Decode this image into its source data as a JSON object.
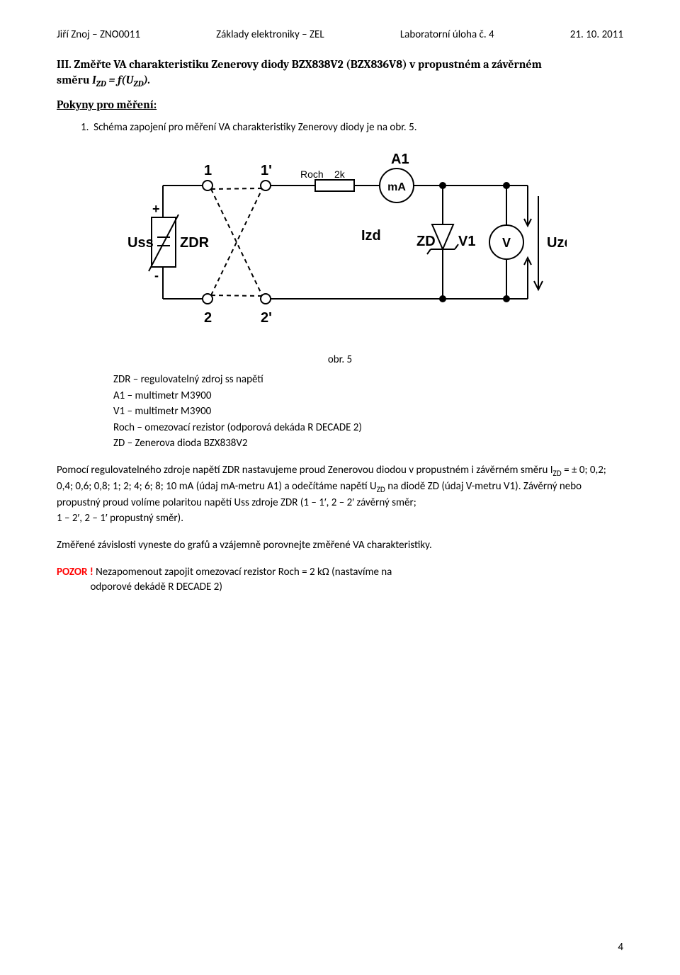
{
  "header": {
    "author": "Jiří Znoj – ZNO0011",
    "subject": "Základy elektroniky – ZEL",
    "task": "Laboratorní úloha č. 4",
    "date": "21. 10. 2011"
  },
  "section": {
    "title_prefix": "III. Změřte VA charakteristiku Zenerovy diody BZX838V2 (BZX836V8) v propustném a závěrném",
    "title_line2_prefix": "směru ",
    "formula_html": "I<sub>ZD</sub> = f(U<sub>ZD</sub>)."
  },
  "instructions_heading": "Pokyny pro měření:",
  "step1": "Schéma zapojení pro měření VA charakteristiky Zenerovy diody je na obr. 5.",
  "circuit": {
    "labels": {
      "Uss": "Uss",
      "plus": "+",
      "minus": "-",
      "ZDR_box": "ZDR",
      "t1": "1",
      "t1p": "1'",
      "t2": "2",
      "t2p": "2'",
      "Roch": "Roch",
      "twok": "2k",
      "A1": "A1",
      "mA": "mA",
      "Izd": "Izd",
      "ZD": "ZD",
      "V1": "V1",
      "V": "V",
      "Uzd": "Uzd"
    },
    "style": {
      "stroke": "#000000",
      "stroke_width": 2,
      "dash": "6,5",
      "font_family": "Arial",
      "bold_font_size": 20,
      "small_font_size": 14
    }
  },
  "caption": "obr. 5",
  "legend": {
    "l1": "ZDR – regulovatelný zdroj ss napětí",
    "l2": "A1 – multimetr M3900",
    "l3": "V1 – multimetr M3900",
    "l4": "Roch – omezovací rezistor (odporová dekáda R DECADE 2)",
    "l5": "ZD – Zenerova dioda BZX838V2"
  },
  "p1_html": "Pomocí regulovatelného zdroje napětí ZDR nastavujeme proud Zenerovou diodou v propustném i závěrném směru I<sub>ZD</sub> = ± 0; 0,2; 0,4; 0,6; 0,8; 1; 2; 4; 6; 8; 10 mA (údaj mA-metru A1) a odečítáme napětí U<sub>ZD</sub> na diodě ZD (údaj V-metru V1). Závěrný nebo propustný proud volíme polaritou napětí Uss zdroje ZDR (1 – 1′, 2 – 2′ závěrný směr;",
  "p1_line2": "1 – 2′, 2 – 1′ propustný směr).",
  "p2": "Změřené závislosti vyneste do grafů a vzájemně porovnejte změřené VA charakteristiky.",
  "warn_label": "POZOR !",
  "warn_text_html": " Nezapomenout zapojit omezovací rezistor Roch = 2 kΩ (nastavíme na<br>&nbsp;&nbsp;&nbsp;&nbsp;&nbsp;&nbsp;&nbsp;&nbsp;&nbsp;&nbsp;&nbsp;&nbsp;&nbsp;&nbsp;odporové dekádě R DECADE 2)",
  "page_number": "4"
}
